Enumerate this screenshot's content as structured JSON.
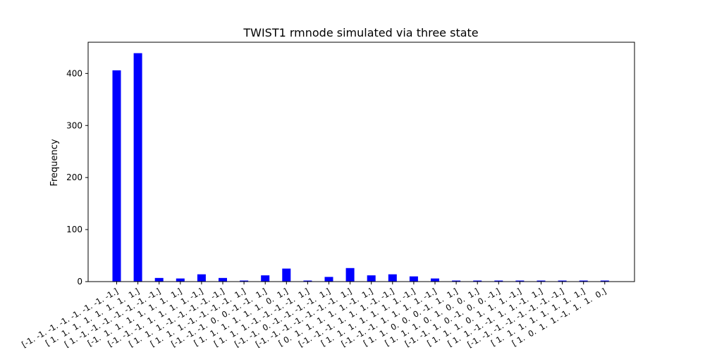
{
  "chart_data": {
    "type": "bar",
    "title": "TWIST1 rmnode simulated via three state",
    "xlabel": "",
    "ylabel": "Frequency",
    "ylim": [
      0,
      460
    ],
    "yticks": [
      0,
      100,
      200,
      300,
      400
    ],
    "grid": false,
    "bar_color": "#0000ff",
    "categories": [
      "[-1. -1. -1. -1. -1. -1. -1. -1.]",
      "[ 1.  1.  1.  1.  1.  1.  1.  1.]",
      "[ 1. -1. -1. -1. -1. -1. -1. -1.]",
      "[-1.  1.  1.  1.  1.  1.  1.  1.]",
      "[-1. -1. -1.  1.  1.  1.  1. -1.]",
      "[ 1.  1.  1. -1. -1. -1. -1. -1.]",
      "[ 1.  1.  1. -1. -1. -1. -1.  1.]",
      "[-1. -1. -1.  0.  0. -1. -1.  1.]",
      "[ 1.  1.  1.  1.  1.  1.  0.  1.]",
      "[ 1.  1.  1. -1. -1. -1. -1.  1.]",
      "[-1. -1.  0. -1. -1. -1. -1.  1.]",
      "[-1. -1. -1. -1. -1. -1. -1.  1.]",
      "[ 0.  1.  1.  1.  1.  1. -1.  1.]",
      "[-1. -1. -1.  1.  1.  1. -1. -1.]",
      "[ 1.  1.  1.  1.  1.  1.  1. -1.]",
      "[-1. -1. -1.  1.  1.  1.  1. -1.]",
      "[ 1.  1.  0.  0.  0. -1.  1.  1.]",
      "[ 1.  1.  1.  0.  1.  0.  0.  1.]",
      "[-1. -1.  1.  0. -1.  0.  0. -1.]",
      "[ 1.  1.  1.  0.  1.  1.  1. -1.]",
      "[ 1.  1. -1. -1.  1.  1. -1.  1.]",
      "[-1. -1. -1. -1. -1. -1. -1. -1.]",
      "[ 1.  1.  1.  1.  1.  1.  1.  1.]",
      "[ 1.  0.  1.  1. -1.  1.  1.  0.]"
    ],
    "values": [
      406,
      439,
      7,
      6,
      14,
      7,
      2,
      12,
      25,
      2,
      9,
      26,
      12,
      14,
      10,
      6,
      2,
      2,
      2,
      2,
      2,
      2,
      2,
      2
    ]
  }
}
